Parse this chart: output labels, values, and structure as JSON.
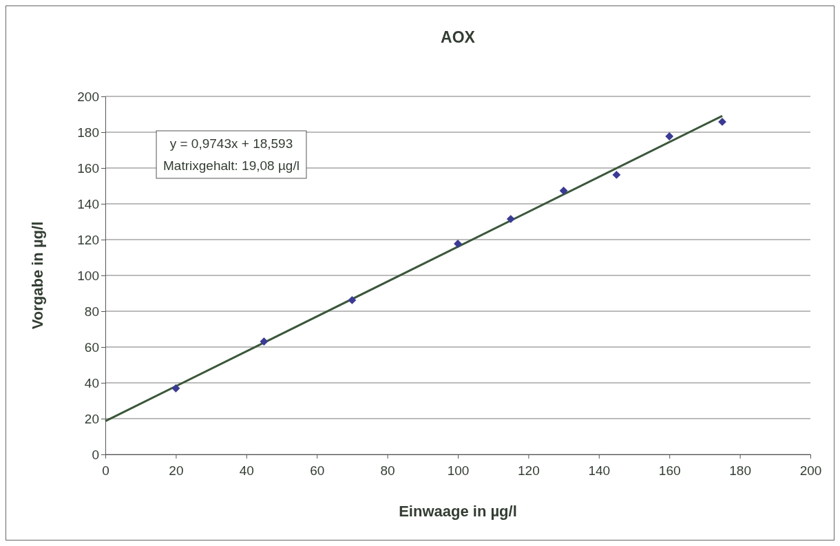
{
  "chart_data": {
    "type": "scatter",
    "title": "AOX",
    "xlabel": "Einwaage in µg/l",
    "ylabel": "Vorgabe in µg/l",
    "xlim": [
      0,
      200
    ],
    "xticks": [
      0,
      20,
      40,
      60,
      80,
      100,
      120,
      140,
      160,
      180,
      200
    ],
    "ylim": [
      0,
      200
    ],
    "yticks": [
      0,
      20,
      40,
      60,
      80,
      100,
      120,
      140,
      160,
      180,
      200
    ],
    "grid": "y",
    "series": [
      {
        "color": "#3b3b94",
        "marker": "diamond",
        "x": [
          20,
          45,
          70,
          100,
          115,
          130,
          145,
          160,
          175
        ],
        "values": [
          36.9,
          63.1,
          86.2,
          117.7,
          131.5,
          147.3,
          156.2,
          177.7,
          185.8
        ]
      },
      {
        "type": "line",
        "color": "#3a573a",
        "line_style": "solid",
        "marker": "none",
        "x": [
          0,
          175
        ],
        "values": [
          18.6,
          189.1
        ]
      }
    ],
    "annotations": [
      "y = 0,9743x + 18,593",
      "Matrixgehalt: 19,08 µg/l"
    ]
  }
}
